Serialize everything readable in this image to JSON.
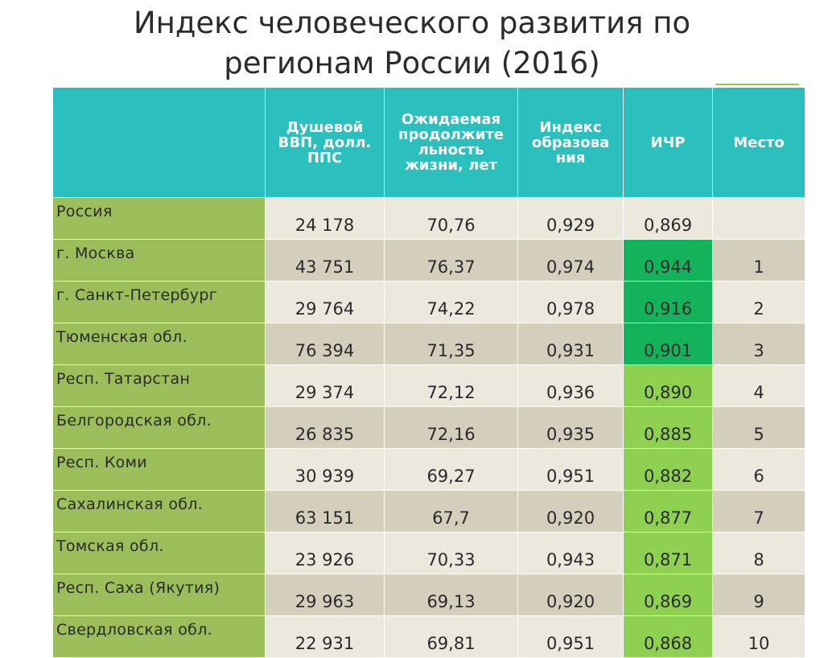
{
  "slide": {
    "title_line1": "Индекс человеческого развития по",
    "title_line2": "регионам России (2016)"
  },
  "table": {
    "headers": [
      "",
      "Душевой ВВП, долл. ППС",
      "Ожидаемая продолжительность жизни, лет",
      "Индекс образования",
      "ИЧР",
      "Место"
    ],
    "header_display": [
      "",
      "Душевой\nВВП, долл.\nППС",
      "Ожидаемая\nпродолжите\nльность\nжизни, лет",
      "Индекс\nобразова\nния",
      "ИЧР",
      "Место"
    ],
    "rows": [
      {
        "region": "Россия",
        "gdp": "24 178",
        "life": "70,76",
        "edu": "0,929",
        "hdi": "0,869",
        "rank": ""
      },
      {
        "region": "г. Москва",
        "gdp": "43 751",
        "life": "76,37",
        "edu": "0,974",
        "hdi": "0,944",
        "rank": "1"
      },
      {
        "region": "г. Санкт-Петербург",
        "gdp": "29 764",
        "life": "74,22",
        "edu": "0,978",
        "hdi": "0,916",
        "rank": "2"
      },
      {
        "region": "Тюменская обл.",
        "gdp": "76 394",
        "life": "71,35",
        "edu": "0,931",
        "hdi": "0,901",
        "rank": "3"
      },
      {
        "region": "Респ. Татарстан",
        "gdp": "29 374",
        "life": "72,12",
        "edu": "0,936",
        "hdi": "0,890",
        "rank": "4"
      },
      {
        "region": "Белгородская обл.",
        "gdp": "26 835",
        "life": "72,16",
        "edu": "0,935",
        "hdi": "0,885",
        "rank": "5"
      },
      {
        "region": "Респ. Коми",
        "gdp": "30 939",
        "life": "69,27",
        "edu": "0,951",
        "hdi": "0,882",
        "rank": "6"
      },
      {
        "region": "Сахалинская обл.",
        "gdp": "63 151",
        "life": "67,7",
        "edu": "0,920",
        "hdi": "0,877",
        "rank": "7"
      },
      {
        "region": "Томская обл.",
        "gdp": "23 926",
        "life": "70,33",
        "edu": "0,943",
        "hdi": "0,871",
        "rank": "8"
      },
      {
        "region": "Респ. Саха (Якутия)",
        "gdp": "29 963",
        "life": "69,13",
        "edu": "0,920",
        "hdi": "0,869",
        "rank": "9"
      },
      {
        "region": "Свердловская обл.",
        "gdp": "22 931",
        "life": "69,81",
        "edu": "0,951",
        "hdi": "0,868",
        "rank": "10"
      }
    ],
    "hdi_highlight": [
      "plain",
      "dark",
      "dark",
      "dark",
      "light",
      "light",
      "light",
      "light",
      "light",
      "light",
      "light"
    ]
  },
  "colors": {
    "header_bg": "#2bbfbd",
    "region_bg": "#9bbd5a",
    "row_light": "#ebe8de",
    "row_dark": "#d4cfbd",
    "hdi_dark": "#12b35a",
    "hdi_light": "#8ed150"
  }
}
